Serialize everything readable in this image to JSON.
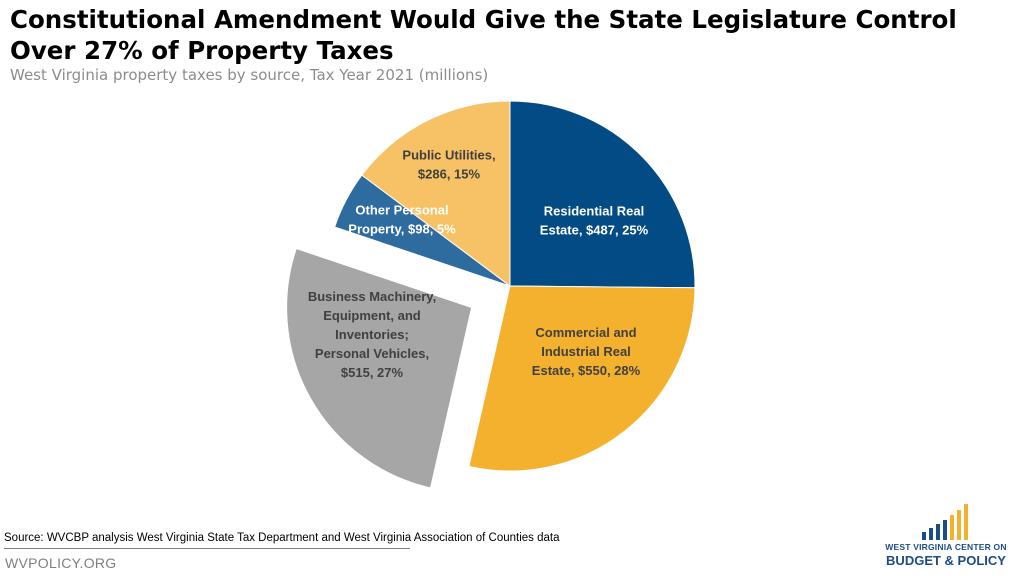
{
  "header": {
    "title": "Constitutional Amendment Would Give the State Legislature Control Over 27% of Property Taxes",
    "subtitle": "West Virginia property taxes by source, Tax Year 2021 (millions)"
  },
  "footer": {
    "source": "Source: WVCBP analysis West Virginia State Tax Department and West Virginia Association of Counties data",
    "site": "WVPOLICY.ORG"
  },
  "logo": {
    "line1": "WEST VIRGINIA CENTER ON",
    "line2": "BUDGET & POLICY"
  },
  "chart_data": {
    "type": "pie",
    "slices": [
      {
        "label_lines": [
          "Residential Real",
          "Estate, $487, 25%"
        ],
        "value": 487,
        "percent": 25,
        "color": "#034b85",
        "label_color": "#ffffff",
        "exploded": false
      },
      {
        "label_lines": [
          "Commercial and",
          "Industrial Real",
          "Estate, $550, 28%"
        ],
        "value": 550,
        "percent": 28,
        "color": "#f4b12e",
        "label_color": "#404040",
        "exploded": false
      },
      {
        "label_lines": [
          "Business Machinery,",
          "Equipment, and",
          "Inventories;",
          "Personal Vehicles,",
          "$515, 27%"
        ],
        "value": 515,
        "percent": 27,
        "color": "#a6a6a6",
        "label_color": "#404040",
        "exploded": true
      },
      {
        "label_lines": [
          "Other Personal",
          "Property, $98, 5%"
        ],
        "value": 98,
        "percent": 5,
        "color": "#2e6b9e",
        "label_color": "#ffffff",
        "exploded": false
      },
      {
        "label_lines": [
          "Public Utilities,",
          "$286, 15%"
        ],
        "value": 286,
        "percent": 15,
        "color": "#f6c265",
        "label_color": "#404040",
        "exploded": false
      }
    ],
    "units": "millions",
    "legend": "none"
  }
}
